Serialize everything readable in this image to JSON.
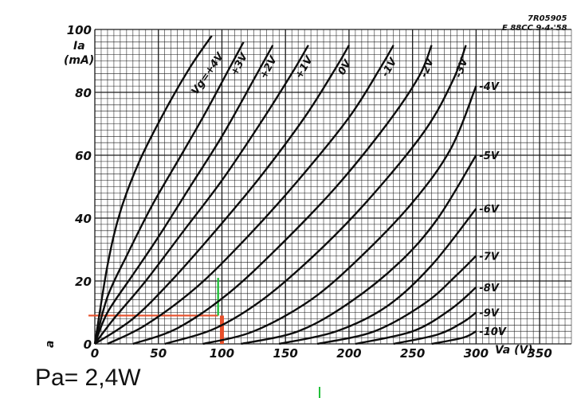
{
  "reference": {
    "line1": "7R05905",
    "line2": "E 88CC 9-4-'58"
  },
  "footer": {
    "power_text": "Pa= 2,4W"
  },
  "stray_mark": "a",
  "chart_data": {
    "type": "line",
    "title": "",
    "ylabel_symbol": "Ia",
    "ylabel_unit": "(mA)",
    "xlabel": "Va (V)",
    "xlim": [
      0,
      375
    ],
    "ylim": [
      0,
      100
    ],
    "x_ticks": [
      0,
      50,
      100,
      150,
      200,
      250,
      300,
      350
    ],
    "y_ticks": [
      0,
      20,
      40,
      60,
      80,
      100
    ],
    "grid": true,
    "series": [
      {
        "name": "Vg=+4V",
        "label_pos": "top",
        "x": [
          0,
          10,
          20,
          35,
          55,
          75,
          92
        ],
        "y": [
          0,
          25,
          42,
          58,
          74,
          88,
          98
        ]
      },
      {
        "name": "+3V",
        "label_pos": "top",
        "x": [
          0,
          10,
          25,
          45,
          65,
          85,
          105,
          117
        ],
        "y": [
          0,
          15,
          28,
          44,
          58,
          72,
          87,
          96
        ]
      },
      {
        "name": "+2V",
        "label_pos": "top",
        "x": [
          0,
          10,
          30,
          50,
          75,
          100,
          125,
          140
        ],
        "y": [
          0,
          10,
          22,
          34,
          50,
          66,
          84,
          95
        ]
      },
      {
        "name": "+1V",
        "label_pos": "top",
        "x": [
          0,
          15,
          40,
          70,
          100,
          130,
          155,
          168
        ],
        "y": [
          0,
          8,
          20,
          36,
          52,
          70,
          86,
          95
        ]
      },
      {
        "name": "0V",
        "label_pos": "top",
        "x": [
          0,
          30,
          60,
          95,
          130,
          165,
          190,
          200
        ],
        "y": [
          0,
          8,
          20,
          36,
          53,
          72,
          88,
          95
        ]
      },
      {
        "name": "-1V",
        "label_pos": "top",
        "x": [
          10,
          40,
          80,
          120,
          160,
          200,
          225,
          235
        ],
        "y": [
          0,
          6,
          18,
          34,
          52,
          72,
          88,
          95
        ]
      },
      {
        "name": "-2V",
        "label_pos": "top",
        "x": [
          30,
          65,
          105,
          145,
          190,
          230,
          255,
          265
        ],
        "y": [
          0,
          5,
          16,
          31,
          50,
          70,
          85,
          95
        ]
      },
      {
        "name": "-3V",
        "label_pos": "top",
        "x": [
          55,
          95,
          135,
          180,
          220,
          260,
          282,
          292
        ],
        "y": [
          0,
          5,
          15,
          31,
          48,
          68,
          84,
          95
        ]
      },
      {
        "name": "-4V",
        "label_pos": "right",
        "x": [
          85,
          125,
          170,
          210,
          250,
          280,
          300
        ],
        "y": [
          0,
          4,
          14,
          28,
          45,
          62,
          82
        ]
      },
      {
        "name": "-5V",
        "label_pos": "right",
        "x": [
          115,
          160,
          200,
          240,
          270,
          300
        ],
        "y": [
          0,
          4,
          13,
          26,
          40,
          60
        ]
      },
      {
        "name": "-6V",
        "label_pos": "right",
        "x": [
          145,
          190,
          230,
          265,
          300
        ],
        "y": [
          0,
          4,
          12,
          25,
          43
        ]
      },
      {
        "name": "-7V",
        "label_pos": "right",
        "x": [
          175,
          220,
          260,
          285,
          300
        ],
        "y": [
          0,
          4,
          13,
          22,
          28
        ]
      },
      {
        "name": "-8V",
        "label_pos": "right",
        "x": [
          205,
          250,
          280,
          300
        ],
        "y": [
          0,
          4,
          11,
          18
        ]
      },
      {
        "name": "-9V",
        "label_pos": "right",
        "x": [
          235,
          270,
          290,
          300
        ],
        "y": [
          0,
          3,
          7,
          10
        ]
      },
      {
        "name": "-10V",
        "label_pos": "right",
        "x": [
          265,
          290,
          300
        ],
        "y": [
          0,
          2,
          4
        ]
      }
    ],
    "markers": [
      {
        "kind": "horizontal",
        "color": "#e8502b",
        "x_from": -5,
        "x_to": 97,
        "y": 9
      },
      {
        "kind": "vertical",
        "color": "#22c03a",
        "x": 97,
        "y_from": 9,
        "y_to": 21
      },
      {
        "kind": "vertical-bar",
        "color": "#e8502b",
        "x": 100,
        "y_from": 0,
        "y_to": 9
      }
    ]
  }
}
